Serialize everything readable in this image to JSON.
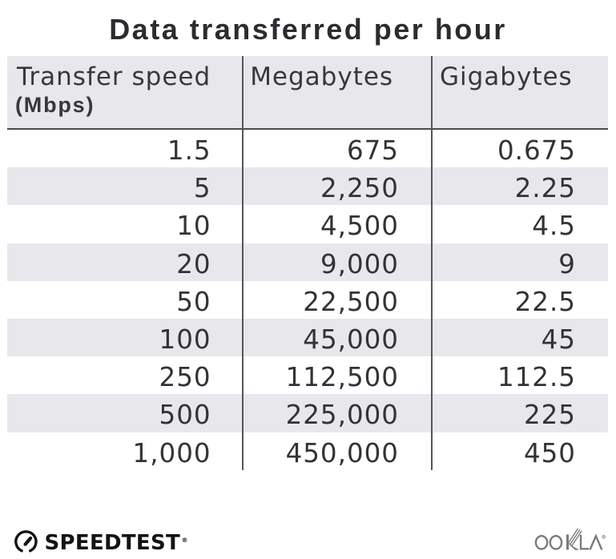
{
  "title": "Data transferred per hour",
  "table": {
    "columns": [
      {
        "label": "Transfer speed",
        "sublabel": "(Mbps)"
      },
      {
        "label": "Megabytes",
        "sublabel": ""
      },
      {
        "label": "Gigabytes",
        "sublabel": ""
      }
    ],
    "rows": [
      [
        "1.5",
        "675",
        "0.675"
      ],
      [
        "5",
        "2,250",
        "2.25"
      ],
      [
        "10",
        "4,500",
        "4.5"
      ],
      [
        "20",
        "9,000",
        "9"
      ],
      [
        "50",
        "22,500",
        "22.5"
      ],
      [
        "100",
        "45,000",
        "45"
      ],
      [
        "250",
        "112,500",
        "112.5"
      ],
      [
        "500",
        "225,000",
        "225"
      ],
      [
        "1,000",
        "450,000",
        "450"
      ]
    ]
  },
  "footer": {
    "speedtest_label": "SPEEDTEST",
    "speedtest_trademark": "®",
    "ookla_label": "OOKLA",
    "ookla_trademark": "®"
  },
  "colors": {
    "background": "#ffffff",
    "stripe": "#e8e8ec",
    "header_background": "#e8e8ec",
    "divider": "#56555a",
    "header_border": "#4b4a4f",
    "title_text": "#2c2b30",
    "header_text": "#38373c",
    "body_text": "#333237",
    "speedtest_logo": "#131216",
    "ookla_logo": "#7b7a7f"
  },
  "chart_data": {
    "type": "table",
    "title": "Data transferred per hour",
    "columns": [
      "Transfer speed (Mbps)",
      "Megabytes",
      "Gigabytes"
    ],
    "rows": [
      [
        1.5,
        675,
        0.675
      ],
      [
        5,
        2250,
        2.25
      ],
      [
        10,
        4500,
        4.5
      ],
      [
        20,
        9000,
        9
      ],
      [
        50,
        22500,
        22.5
      ],
      [
        100,
        45000,
        45
      ],
      [
        250,
        112500,
        112.5
      ],
      [
        500,
        225000,
        225
      ],
      [
        1000,
        450000,
        450
      ]
    ]
  }
}
